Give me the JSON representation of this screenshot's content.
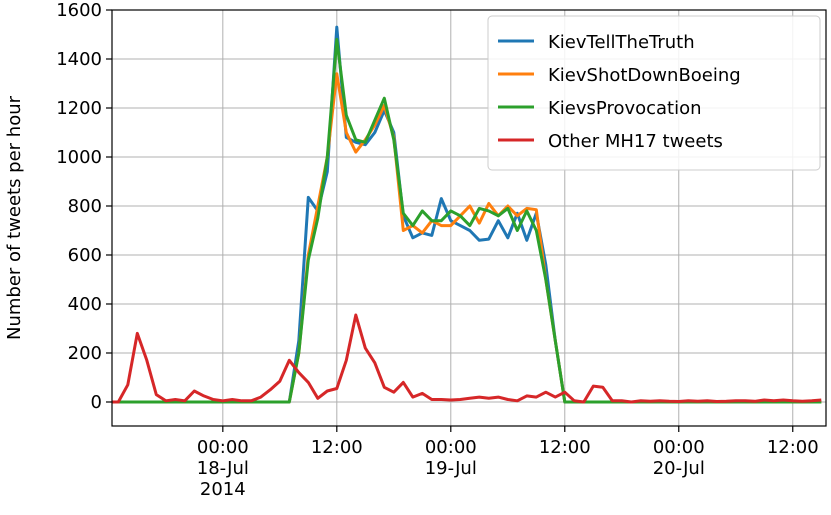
{
  "chart_data": {
    "type": "line",
    "ylabel": "Number of tweets per hour",
    "x": [
      "2014-07-17T12:00",
      "2014-07-17T13:00",
      "2014-07-17T14:00",
      "2014-07-17T15:00",
      "2014-07-17T16:00",
      "2014-07-17T17:00",
      "2014-07-17T18:00",
      "2014-07-17T19:00",
      "2014-07-17T20:00",
      "2014-07-17T21:00",
      "2014-07-17T22:00",
      "2014-07-17T23:00",
      "2014-07-18T00:00",
      "2014-07-18T01:00",
      "2014-07-18T02:00",
      "2014-07-18T03:00",
      "2014-07-18T04:00",
      "2014-07-18T05:00",
      "2014-07-18T06:00",
      "2014-07-18T07:00",
      "2014-07-18T08:00",
      "2014-07-18T09:00",
      "2014-07-18T10:00",
      "2014-07-18T11:00",
      "2014-07-18T12:00",
      "2014-07-18T13:00",
      "2014-07-18T14:00",
      "2014-07-18T15:00",
      "2014-07-18T16:00",
      "2014-07-18T17:00",
      "2014-07-18T18:00",
      "2014-07-18T19:00",
      "2014-07-18T20:00",
      "2014-07-18T21:00",
      "2014-07-18T22:00",
      "2014-07-18T23:00",
      "2014-07-19T00:00",
      "2014-07-19T01:00",
      "2014-07-19T02:00",
      "2014-07-19T03:00",
      "2014-07-19T04:00",
      "2014-07-19T05:00",
      "2014-07-19T06:00",
      "2014-07-19T07:00",
      "2014-07-19T08:00",
      "2014-07-19T09:00",
      "2014-07-19T10:00",
      "2014-07-19T11:00",
      "2014-07-19T12:00",
      "2014-07-19T13:00",
      "2014-07-19T14:00",
      "2014-07-19T15:00",
      "2014-07-19T16:00",
      "2014-07-19T17:00",
      "2014-07-19T18:00",
      "2014-07-19T19:00",
      "2014-07-19T20:00",
      "2014-07-19T21:00",
      "2014-07-19T22:00",
      "2014-07-19T23:00",
      "2014-07-20T00:00",
      "2014-07-20T01:00",
      "2014-07-20T02:00",
      "2014-07-20T03:00",
      "2014-07-20T04:00",
      "2014-07-20T05:00",
      "2014-07-20T06:00",
      "2014-07-20T07:00",
      "2014-07-20T08:00",
      "2014-07-20T09:00",
      "2014-07-20T10:00",
      "2014-07-20T11:00",
      "2014-07-20T12:00",
      "2014-07-20T13:00",
      "2014-07-20T14:00",
      "2014-07-20T15:00"
    ],
    "series": [
      {
        "name": "KievTellTheTruth",
        "color": "#1f77b4",
        "values": [
          0,
          0,
          0,
          0,
          0,
          0,
          0,
          0,
          0,
          0,
          0,
          0,
          0,
          0,
          0,
          0,
          0,
          0,
          0,
          0,
          250,
          835,
          780,
          940,
          1530,
          1080,
          1060,
          1050,
          1100,
          1190,
          1100,
          760,
          670,
          690,
          680,
          830,
          740,
          720,
          700,
          660,
          665,
          740,
          670,
          770,
          660,
          770,
          560,
          250,
          0,
          0,
          0,
          0,
          0,
          0,
          0,
          0,
          0,
          0,
          0,
          0,
          0,
          0,
          0,
          0,
          0,
          0,
          0,
          0,
          0,
          0,
          0,
          0,
          0,
          0,
          0,
          0
        ]
      },
      {
        "name": "KievShotDownBoeing",
        "color": "#ff7f0e",
        "values": [
          0,
          0,
          0,
          0,
          0,
          0,
          0,
          0,
          0,
          0,
          0,
          0,
          0,
          0,
          0,
          0,
          0,
          0,
          0,
          0,
          200,
          600,
          800,
          1000,
          1340,
          1100,
          1020,
          1070,
          1130,
          1210,
          1080,
          700,
          720,
          690,
          740,
          720,
          720,
          760,
          800,
          730,
          810,
          760,
          800,
          760,
          790,
          785,
          500,
          250,
          0,
          0,
          0,
          0,
          0,
          0,
          0,
          0,
          0,
          0,
          0,
          0,
          0,
          0,
          0,
          0,
          0,
          0,
          0,
          0,
          0,
          0,
          0,
          0,
          0,
          0,
          0,
          0
        ]
      },
      {
        "name": "KievsProvocation",
        "color": "#2ca02c",
        "values": [
          0,
          0,
          0,
          0,
          0,
          0,
          0,
          0,
          0,
          0,
          0,
          0,
          0,
          0,
          0,
          0,
          0,
          0,
          0,
          0,
          200,
          580,
          750,
          1000,
          1480,
          1170,
          1070,
          1060,
          1150,
          1240,
          1070,
          770,
          720,
          780,
          740,
          740,
          780,
          760,
          720,
          790,
          780,
          760,
          790,
          700,
          780,
          700,
          500,
          250,
          0,
          0,
          0,
          0,
          0,
          0,
          0,
          0,
          0,
          0,
          0,
          0,
          0,
          0,
          0,
          0,
          0,
          0,
          0,
          0,
          0,
          0,
          0,
          0,
          0,
          0,
          0,
          0
        ]
      },
      {
        "name": "Other MH17 tweets",
        "color": "#d62728",
        "values": [
          0,
          0,
          70,
          280,
          170,
          30,
          5,
          10,
          5,
          45,
          25,
          10,
          5,
          10,
          5,
          5,
          20,
          50,
          85,
          170,
          120,
          80,
          15,
          45,
          55,
          170,
          355,
          220,
          160,
          60,
          40,
          80,
          20,
          35,
          10,
          10,
          8,
          10,
          15,
          20,
          15,
          20,
          10,
          5,
          25,
          20,
          40,
          20,
          40,
          5,
          0,
          65,
          60,
          5,
          5,
          0,
          5,
          3,
          5,
          3,
          2,
          5,
          3,
          5,
          2,
          3,
          5,
          5,
          3,
          8,
          5,
          8,
          5,
          3,
          5,
          8
        ]
      }
    ],
    "xlim": [
      "2014-07-17T12:20",
      "2014-07-20T15:30"
    ],
    "xticks": [
      {
        "value": "2014-07-18T00:00",
        "label": "00:00\n18-Jul\n2014"
      },
      {
        "value": "2014-07-18T12:00",
        "label": "12:00"
      },
      {
        "value": "2014-07-19T00:00",
        "label": "00:00\n19-Jul"
      },
      {
        "value": "2014-07-19T12:00",
        "label": "12:00"
      },
      {
        "value": "2014-07-20T00:00",
        "label": "00:00\n20-Jul"
      },
      {
        "value": "2014-07-20T12:00",
        "label": "12:00"
      }
    ],
    "ylim": [
      -98,
      1600
    ],
    "yticks": [
      0,
      200,
      400,
      600,
      800,
      1000,
      1200,
      1400,
      1600
    ],
    "grid": true,
    "legend": "upper right"
  }
}
